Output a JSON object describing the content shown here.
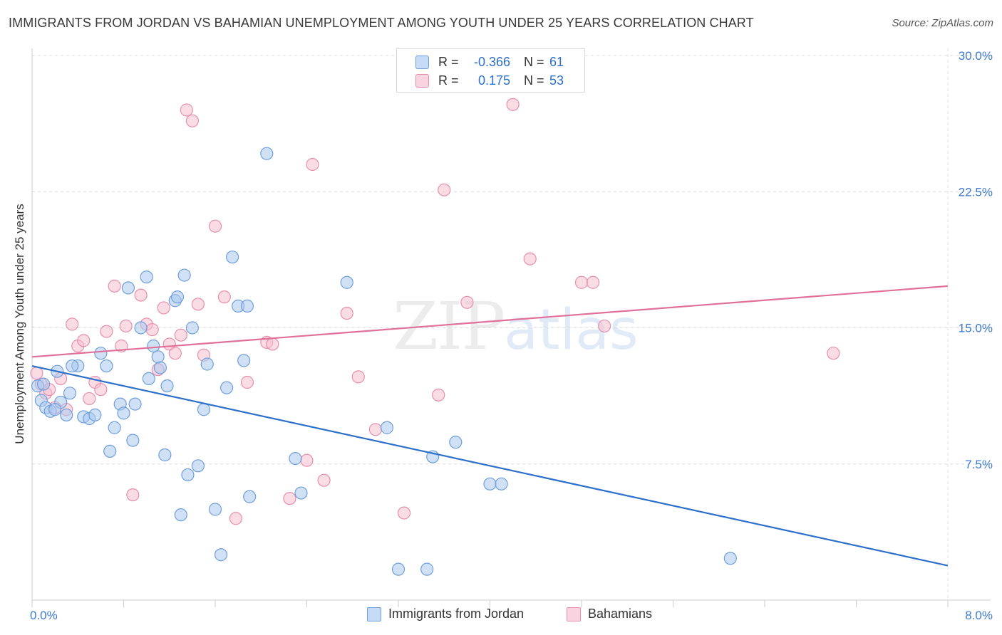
{
  "header": {
    "title": "IMMIGRANTS FROM JORDAN VS BAHAMIAN UNEMPLOYMENT AMONG YOUTH UNDER 25 YEARS CORRELATION CHART",
    "source": "Source: ZipAtlas.com"
  },
  "watermark": {
    "zip": "ZIP",
    "atlas": "atlas"
  },
  "stats": {
    "jordan": {
      "r_label": "R =",
      "r_value": "-0.366",
      "n_label": "N =",
      "n_value": "61"
    },
    "bahamians": {
      "r_label": "R =",
      "r_value": "0.175",
      "n_label": "N =",
      "n_value": "53"
    }
  },
  "colors": {
    "jordan_fill": "#a9c8ee",
    "jordan_stroke": "#6f9fdc",
    "jordan_line": "#2c70cc",
    "bahamians_fill": "#f6bfd0",
    "bahamians_stroke": "#e88fae",
    "bahamians_line": "#e0709a",
    "grid": "#dcdcdc",
    "axis": "#cccccc",
    "tick_text": "#3c7bd1"
  },
  "chart_data": {
    "type": "scatter",
    "title": "IMMIGRANTS FROM JORDAN VS BAHAMIAN UNEMPLOYMENT AMONG YOUTH UNDER 25 YEARS CORRELATION CHART",
    "xlabel": "",
    "ylabel": "Unemployment Among Youth under 25 years",
    "xlim": [
      0,
      8.0
    ],
    "ylim": [
      0,
      30.0
    ],
    "x_tick_labels": [
      "0.0%",
      "8.0%"
    ],
    "y_ticks": [
      7.5,
      15.0,
      22.5,
      30.0
    ],
    "y_tick_labels": [
      "7.5%",
      "15.0%",
      "22.5%",
      "30.0%"
    ],
    "grid": true,
    "legend_position": "bottom-center",
    "series": [
      {
        "name": "Immigrants from Jordan",
        "r": -0.366,
        "n": 61,
        "trend": {
          "x": [
            0.0,
            8.0
          ],
          "y": [
            12.9,
            1.9
          ]
        },
        "points": [
          [
            0.05,
            11.8
          ],
          [
            0.08,
            11.0
          ],
          [
            0.12,
            10.6
          ],
          [
            0.16,
            10.4
          ],
          [
            0.22,
            12.6
          ],
          [
            0.25,
            10.9
          ],
          [
            0.3,
            10.2
          ],
          [
            0.33,
            11.4
          ],
          [
            0.4,
            12.9
          ],
          [
            0.45,
            10.1
          ],
          [
            0.5,
            10.0
          ],
          [
            0.55,
            10.2
          ],
          [
            0.6,
            13.6
          ],
          [
            0.65,
            12.9
          ],
          [
            0.68,
            8.2
          ],
          [
            0.72,
            9.5
          ],
          [
            0.77,
            10.8
          ],
          [
            0.8,
            10.3
          ],
          [
            0.84,
            17.2
          ],
          [
            0.88,
            8.8
          ],
          [
            0.9,
            10.8
          ],
          [
            0.95,
            15.0
          ],
          [
            1.0,
            17.8
          ],
          [
            1.02,
            12.2
          ],
          [
            1.06,
            14.0
          ],
          [
            1.1,
            13.4
          ],
          [
            1.12,
            12.8
          ],
          [
            1.16,
            8.0
          ],
          [
            1.18,
            11.8
          ],
          [
            1.25,
            16.5
          ],
          [
            1.27,
            16.7
          ],
          [
            1.3,
            4.7
          ],
          [
            1.33,
            17.9
          ],
          [
            1.36,
            6.9
          ],
          [
            1.4,
            15.0
          ],
          [
            1.45,
            7.4
          ],
          [
            1.5,
            10.5
          ],
          [
            1.53,
            13.0
          ],
          [
            1.6,
            5.0
          ],
          [
            1.65,
            2.5
          ],
          [
            1.7,
            11.7
          ],
          [
            1.75,
            18.9
          ],
          [
            1.8,
            16.2
          ],
          [
            1.85,
            13.2
          ],
          [
            1.88,
            16.2
          ],
          [
            1.9,
            5.7
          ],
          [
            2.05,
            24.6
          ],
          [
            2.3,
            7.8
          ],
          [
            2.35,
            5.9
          ],
          [
            2.75,
            17.5
          ],
          [
            3.1,
            9.5
          ],
          [
            3.2,
            1.7
          ],
          [
            3.45,
            1.7
          ],
          [
            3.5,
            7.9
          ],
          [
            3.7,
            8.7
          ],
          [
            4.0,
            6.4
          ],
          [
            4.1,
            6.4
          ],
          [
            6.1,
            2.3
          ],
          [
            0.1,
            11.9
          ],
          [
            0.2,
            10.5
          ],
          [
            0.35,
            12.9
          ]
        ]
      },
      {
        "name": "Bahamians",
        "r": 0.175,
        "n": 53,
        "trend": {
          "x": [
            0.0,
            8.0
          ],
          "y": [
            13.4,
            17.3
          ]
        },
        "points": [
          [
            0.04,
            12.5
          ],
          [
            0.08,
            11.9
          ],
          [
            0.12,
            11.4
          ],
          [
            0.15,
            11.6
          ],
          [
            0.2,
            10.6
          ],
          [
            0.25,
            12.2
          ],
          [
            0.3,
            10.5
          ],
          [
            0.35,
            15.2
          ],
          [
            0.4,
            14.0
          ],
          [
            0.45,
            14.3
          ],
          [
            0.5,
            11.1
          ],
          [
            0.55,
            12.0
          ],
          [
            0.6,
            11.6
          ],
          [
            0.65,
            14.8
          ],
          [
            0.72,
            17.3
          ],
          [
            0.78,
            14.0
          ],
          [
            0.82,
            15.1
          ],
          [
            0.88,
            5.8
          ],
          [
            0.95,
            16.8
          ],
          [
            1.0,
            15.2
          ],
          [
            1.05,
            14.9
          ],
          [
            1.1,
            12.7
          ],
          [
            1.15,
            16.1
          ],
          [
            1.2,
            14.1
          ],
          [
            1.25,
            13.6
          ],
          [
            1.3,
            14.6
          ],
          [
            1.35,
            27.0
          ],
          [
            1.4,
            26.4
          ],
          [
            1.45,
            16.3
          ],
          [
            1.5,
            13.5
          ],
          [
            1.6,
            20.6
          ],
          [
            1.68,
            16.7
          ],
          [
            1.78,
            4.5
          ],
          [
            1.88,
            12.0
          ],
          [
            2.05,
            14.2
          ],
          [
            2.1,
            14.1
          ],
          [
            2.25,
            5.6
          ],
          [
            2.4,
            7.7
          ],
          [
            2.45,
            24.0
          ],
          [
            2.55,
            6.6
          ],
          [
            2.75,
            15.8
          ],
          [
            2.85,
            12.3
          ],
          [
            3.0,
            9.4
          ],
          [
            3.25,
            4.8
          ],
          [
            3.55,
            11.3
          ],
          [
            3.6,
            22.6
          ],
          [
            3.8,
            16.4
          ],
          [
            4.2,
            27.3
          ],
          [
            4.35,
            18.8
          ],
          [
            4.8,
            17.5
          ],
          [
            4.9,
            17.5
          ],
          [
            5.0,
            15.1
          ],
          [
            7.0,
            13.6
          ]
        ]
      }
    ]
  },
  "legend": {
    "items": [
      {
        "label": "Immigrants from Jordan"
      },
      {
        "label": "Bahamians"
      }
    ]
  }
}
